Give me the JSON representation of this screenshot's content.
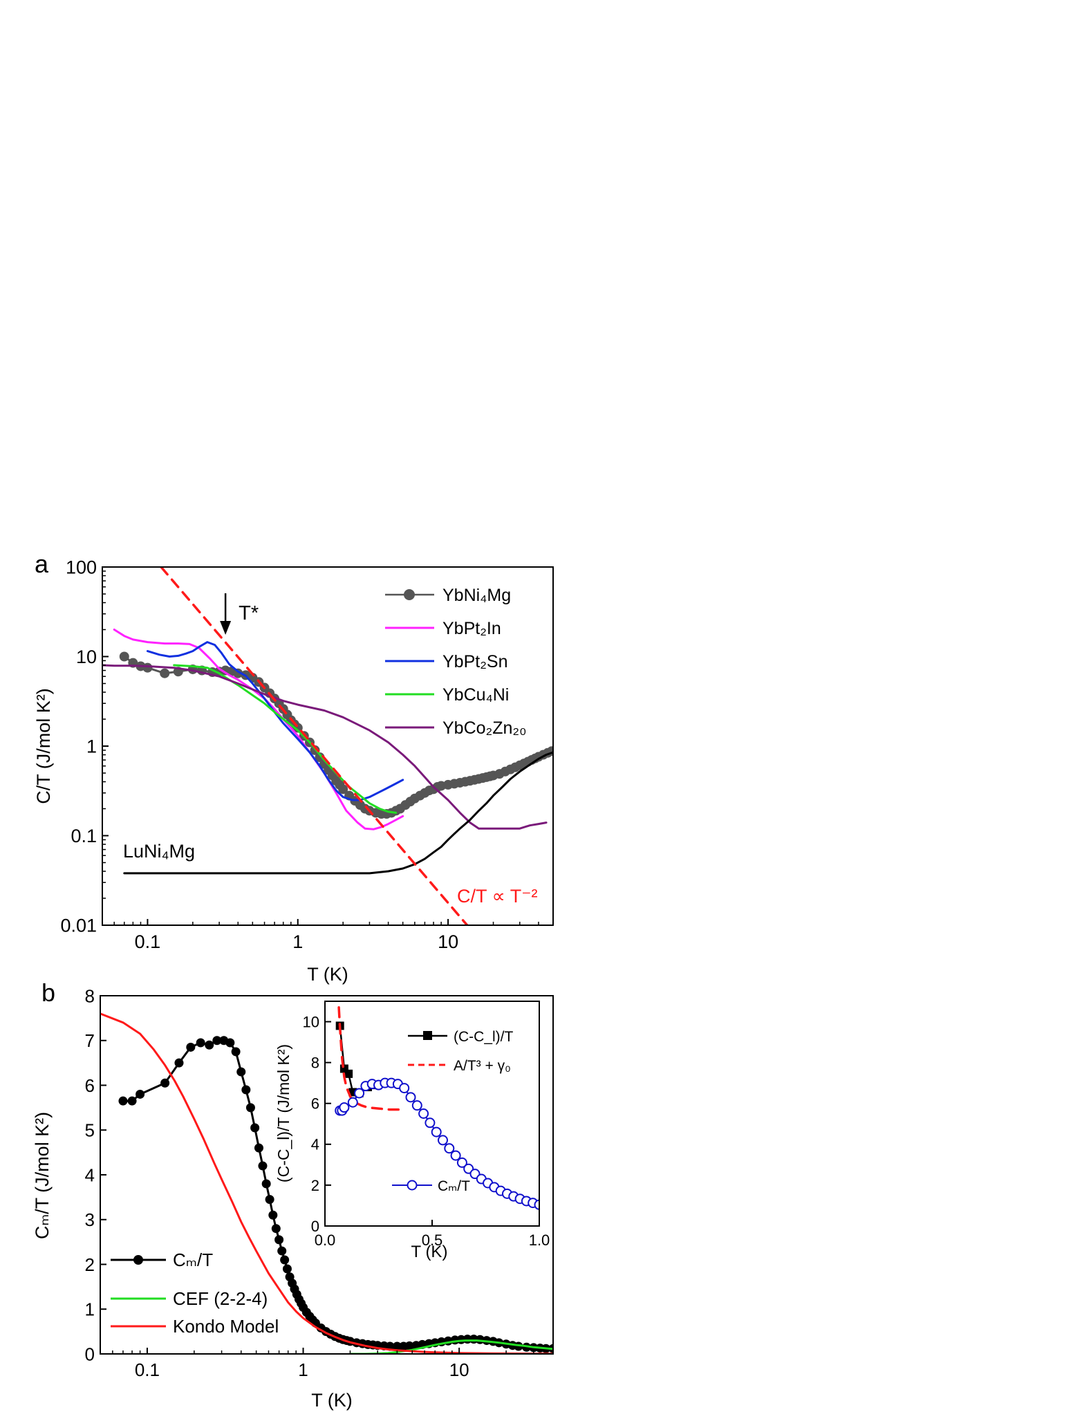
{
  "chart_data": [
    {
      "panel_label": "a",
      "type": "line",
      "xlabel": "T (K)",
      "ylabel": "C/T (J/mol K²)",
      "xscale": "log",
      "yscale": "log",
      "xlim": [
        0.05,
        50
      ],
      "ylim": [
        0.01,
        100
      ],
      "x_ticks": [
        0.1,
        1,
        10
      ],
      "x_tick_labels": [
        "0.1",
        "1",
        "10"
      ],
      "y_ticks": [
        0.01,
        0.1,
        1,
        10,
        100
      ],
      "y_tick_labels": [
        "0.01",
        "0.1",
        "1",
        "10",
        "100"
      ],
      "legend_position": "top-right",
      "annotations": {
        "tstar": "T*",
        "tstar_x": 0.33,
        "lu_label": "LuNi₄Mg",
        "powerlaw_label": "C/T ∝ T⁻²"
      },
      "colors": {
        "YbNi4Mg": "#555555",
        "YbPt2In": "#ff22ff",
        "YbPt2Sn": "#1030e0",
        "YbCu4Ni": "#22dd22",
        "YbCo2Zn20": "#7a1a7a",
        "LuNi4Mg": "#000000",
        "powerlaw": "#ff1a1a"
      },
      "series": [
        {
          "name": "YbNi₄Mg",
          "key": "YbNi4Mg",
          "style": "line-markers",
          "x": [
            0.07,
            0.08,
            0.09,
            0.1,
            0.13,
            0.16,
            0.2,
            0.23,
            0.27,
            0.3,
            0.33,
            0.36,
            0.4,
            0.45,
            0.5,
            0.55,
            0.6,
            0.65,
            0.7,
            0.75,
            0.8,
            0.85,
            0.9,
            0.95,
            1.0,
            1.1,
            1.2,
            1.3,
            1.4,
            1.5,
            1.6,
            1.7,
            1.8,
            1.9,
            2.0,
            2.2,
            2.4,
            2.6,
            2.8,
            3.0,
            3.3,
            3.6,
            3.9,
            4.2,
            4.5,
            4.8,
            5.2,
            5.6,
            6.0,
            6.5,
            7.0,
            7.5,
            8.0,
            8.5,
            9.0,
            10,
            11,
            12,
            13,
            14,
            15,
            16,
            17,
            18,
            19,
            20,
            22,
            24,
            26,
            28,
            30,
            32,
            34,
            36,
            38,
            40,
            43,
            46,
            49
          ],
          "y": [
            10,
            8.5,
            7.8,
            7.5,
            6.5,
            6.8,
            7.2,
            7.0,
            6.7,
            6.8,
            7.0,
            6.8,
            6.5,
            6.2,
            5.8,
            5.2,
            4.5,
            3.9,
            3.4,
            3.0,
            2.6,
            2.25,
            1.95,
            1.75,
            1.6,
            1.3,
            1.1,
            0.9,
            0.75,
            0.63,
            0.54,
            0.47,
            0.41,
            0.37,
            0.33,
            0.28,
            0.245,
            0.22,
            0.2,
            0.19,
            0.18,
            0.175,
            0.175,
            0.18,
            0.19,
            0.2,
            0.22,
            0.24,
            0.26,
            0.28,
            0.3,
            0.32,
            0.33,
            0.35,
            0.36,
            0.37,
            0.38,
            0.39,
            0.4,
            0.41,
            0.42,
            0.43,
            0.44,
            0.45,
            0.46,
            0.47,
            0.49,
            0.52,
            0.55,
            0.58,
            0.61,
            0.64,
            0.67,
            0.7,
            0.73,
            0.76,
            0.8,
            0.84,
            0.88
          ]
        },
        {
          "name": "YbPt₂In",
          "key": "YbPt2In",
          "style": "line",
          "x": [
            0.06,
            0.07,
            0.08,
            0.1,
            0.13,
            0.16,
            0.19,
            0.22,
            0.26,
            0.3,
            0.35,
            0.4,
            0.5,
            0.6,
            0.7,
            0.8,
            1.0,
            1.2,
            1.5,
            1.8,
            2.1,
            2.5,
            2.8,
            3.2,
            3.6,
            4.0,
            4.5,
            5.0
          ],
          "y": [
            20,
            17,
            15.5,
            14.5,
            14,
            14,
            13.8,
            12.5,
            9.5,
            7.3,
            6.2,
            5.5,
            4.3,
            3.4,
            2.6,
            2.0,
            1.3,
            0.85,
            0.5,
            0.3,
            0.19,
            0.14,
            0.12,
            0.118,
            0.125,
            0.135,
            0.15,
            0.165
          ]
        },
        {
          "name": "YbPt₂Sn",
          "key": "YbPt2Sn",
          "style": "line",
          "x": [
            0.1,
            0.12,
            0.14,
            0.16,
            0.18,
            0.2,
            0.22,
            0.25,
            0.28,
            0.31,
            0.35,
            0.4,
            0.45,
            0.5,
            0.6,
            0.7,
            0.8,
            1.0,
            1.2,
            1.4,
            1.6,
            1.8,
            2.0,
            2.3,
            2.6,
            3.0,
            3.4,
            3.8,
            4.2,
            4.6,
            5.0
          ],
          "y": [
            11.5,
            10.5,
            10.0,
            10.2,
            10.8,
            11.5,
            12.8,
            14.5,
            13.5,
            11,
            8.2,
            6.8,
            6.1,
            5.0,
            3.4,
            2.4,
            1.8,
            1.2,
            0.85,
            0.6,
            0.42,
            0.32,
            0.27,
            0.25,
            0.25,
            0.27,
            0.3,
            0.33,
            0.36,
            0.39,
            0.42
          ]
        },
        {
          "name": "YbCu₄Ni",
          "key": "YbCu4Ni",
          "style": "line",
          "x": [
            0.15,
            0.2,
            0.25,
            0.3,
            0.35,
            0.4,
            0.5,
            0.6,
            0.7,
            0.8,
            1.0,
            1.2,
            1.5,
            1.8,
            2.2,
            2.6,
            3.0,
            3.5,
            4.0,
            4.5
          ],
          "y": [
            8.0,
            7.8,
            7.5,
            6.5,
            5.5,
            4.8,
            3.7,
            3.0,
            2.4,
            2.0,
            1.5,
            1.1,
            0.7,
            0.5,
            0.35,
            0.28,
            0.23,
            0.2,
            0.185,
            0.18
          ]
        },
        {
          "name": "YbCo₂Zn₂₀",
          "key": "YbCo2Zn20",
          "style": "line",
          "x": [
            0.05,
            0.06,
            0.08,
            0.1,
            0.15,
            0.2,
            0.3,
            0.4,
            0.5,
            0.6,
            0.8,
            1.0,
            1.5,
            2.0,
            3.0,
            4.0,
            5.0,
            6.0,
            7.0,
            8.0,
            10,
            12,
            14,
            16,
            20,
            25,
            30,
            35,
            40,
            45
          ],
          "y": [
            8.0,
            7.9,
            7.9,
            7.8,
            7.5,
            7.0,
            6.0,
            5.0,
            4.3,
            3.8,
            3.2,
            2.9,
            2.5,
            2.1,
            1.5,
            1.1,
            0.8,
            0.6,
            0.45,
            0.35,
            0.25,
            0.18,
            0.14,
            0.12,
            0.12,
            0.12,
            0.12,
            0.13,
            0.135,
            0.14
          ]
        },
        {
          "name": "LuNi₄Mg",
          "key": "LuNi4Mg",
          "style": "line",
          "in_legend": false,
          "x": [
            0.07,
            0.1,
            0.2,
            0.5,
            1.0,
            2.0,
            3.0,
            4.0,
            5.0,
            6.0,
            7.0,
            8.0,
            9.0,
            10,
            11,
            12,
            14,
            16,
            18,
            20,
            23,
            26,
            30,
            35,
            40,
            45,
            50
          ],
          "y": [
            0.038,
            0.038,
            0.038,
            0.038,
            0.038,
            0.038,
            0.038,
            0.04,
            0.043,
            0.048,
            0.055,
            0.065,
            0.075,
            0.09,
            0.105,
            0.12,
            0.15,
            0.19,
            0.23,
            0.28,
            0.35,
            0.43,
            0.52,
            0.62,
            0.72,
            0.8,
            0.85
          ]
        },
        {
          "name": "C/T ∝ T⁻²",
          "key": "powerlaw",
          "style": "dashed",
          "in_legend": false,
          "x": [
            0.123,
            13.4
          ],
          "y": [
            100,
            0.01
          ]
        }
      ]
    },
    {
      "panel_label": "b",
      "type": "line",
      "xlabel": "T (K)",
      "ylabel": "Cₘ/T (J/mol K²)",
      "xscale": "log",
      "yscale": "linear",
      "xlim": [
        0.05,
        40
      ],
      "ylim": [
        0,
        8
      ],
      "x_ticks": [
        0.1,
        1,
        10
      ],
      "x_tick_labels": [
        "0.1",
        "1",
        "10"
      ],
      "y_ticks": [
        0,
        1,
        2,
        3,
        4,
        5,
        6,
        7,
        8
      ],
      "y_tick_labels": [
        "0",
        "1",
        "2",
        "3",
        "4",
        "5",
        "6",
        "7",
        "8"
      ],
      "legend_position": "bottom-left",
      "colors": {
        "cm": "#000000",
        "cef": "#22dd22",
        "kondo": "#ff1a1a"
      },
      "series": [
        {
          "name": "Cₘ/T",
          "key": "cm",
          "style": "line-markers",
          "x": [
            0.07,
            0.08,
            0.09,
            0.13,
            0.16,
            0.19,
            0.22,
            0.25,
            0.28,
            0.31,
            0.34,
            0.37,
            0.4,
            0.43,
            0.46,
            0.49,
            0.52,
            0.55,
            0.58,
            0.61,
            0.64,
            0.67,
            0.7,
            0.73,
            0.76,
            0.79,
            0.82,
            0.85,
            0.88,
            0.91,
            0.94,
            0.97,
            1.0,
            1.05,
            1.1,
            1.15,
            1.2,
            1.3,
            1.4,
            1.5,
            1.6,
            1.7,
            1.8,
            1.9,
            2.0,
            2.2,
            2.4,
            2.6,
            2.8,
            3.0,
            3.3,
            3.6,
            4.0,
            4.4,
            4.8,
            5.3,
            5.8,
            6.4,
            7.0,
            7.7,
            8.5,
            9.4,
            10.3,
            11.3,
            12.4,
            13.6,
            15,
            16.5,
            18,
            20,
            22,
            24,
            27,
            30,
            33,
            36,
            40
          ],
          "y": [
            5.65,
            5.65,
            5.8,
            6.05,
            6.5,
            6.85,
            6.95,
            6.9,
            7.0,
            7.0,
            6.95,
            6.75,
            6.3,
            5.9,
            5.5,
            5.05,
            4.6,
            4.2,
            3.8,
            3.45,
            3.1,
            2.8,
            2.55,
            2.3,
            2.1,
            1.9,
            1.72,
            1.58,
            1.45,
            1.33,
            1.22,
            1.13,
            1.04,
            0.93,
            0.84,
            0.76,
            0.69,
            0.58,
            0.5,
            0.44,
            0.39,
            0.35,
            0.32,
            0.3,
            0.28,
            0.25,
            0.23,
            0.21,
            0.2,
            0.19,
            0.18,
            0.17,
            0.17,
            0.17,
            0.18,
            0.19,
            0.21,
            0.23,
            0.25,
            0.27,
            0.29,
            0.31,
            0.32,
            0.33,
            0.33,
            0.32,
            0.3,
            0.28,
            0.25,
            0.22,
            0.19,
            0.17,
            0.15,
            0.14,
            0.13,
            0.12,
            0.12
          ]
        },
        {
          "name": "CEF (2-2-4)",
          "key": "cef",
          "style": "line",
          "x": [
            2.0,
            2.5,
            3.0,
            3.5,
            4.0,
            5.0,
            6.0,
            7.0,
            8.0,
            9.0,
            10,
            11,
            12,
            13,
            14,
            16,
            18,
            20,
            23,
            26,
            30,
            35,
            40
          ],
          "y": [
            0.0,
            0.0,
            0.01,
            0.02,
            0.04,
            0.09,
            0.15,
            0.2,
            0.24,
            0.27,
            0.29,
            0.3,
            0.3,
            0.3,
            0.29,
            0.27,
            0.25,
            0.23,
            0.2,
            0.18,
            0.15,
            0.13,
            0.11
          ]
        },
        {
          "name": "Kondo Model",
          "key": "kondo",
          "style": "line",
          "x": [
            0.05,
            0.07,
            0.09,
            0.11,
            0.13,
            0.15,
            0.17,
            0.2,
            0.23,
            0.27,
            0.3,
            0.35,
            0.4,
            0.45,
            0.5,
            0.6,
            0.7,
            0.8,
            0.9,
            1.0,
            1.2,
            1.4,
            1.6,
            1.8,
            2.0,
            2.5,
            3.0,
            3.5,
            4.0,
            5.0,
            6.0,
            7.0,
            8.0,
            10,
            13,
            16,
            20,
            25,
            30,
            40
          ],
          "y": [
            7.6,
            7.4,
            7.15,
            6.8,
            6.45,
            6.1,
            5.75,
            5.25,
            4.8,
            4.25,
            3.9,
            3.4,
            2.95,
            2.6,
            2.3,
            1.8,
            1.45,
            1.15,
            0.95,
            0.8,
            0.6,
            0.47,
            0.38,
            0.31,
            0.26,
            0.18,
            0.13,
            0.1,
            0.08,
            0.06,
            0.045,
            0.035,
            0.03,
            0.02,
            0.015,
            0.012,
            0.01,
            0.008,
            0.006,
            0.005
          ]
        }
      ]
    },
    {
      "panel_label": "",
      "type": "line",
      "inset_of": "b",
      "xlabel": "T (K)",
      "ylabel": "(C-C_l)/T (J/mol K²)",
      "xscale": "linear",
      "yscale": "linear",
      "xlim": [
        0,
        1.0
      ],
      "ylim": [
        0,
        11
      ],
      "x_ticks": [
        0,
        0.5,
        1.0
      ],
      "x_tick_labels": [
        "0.0",
        "0.5",
        "1.0"
      ],
      "y_ticks": [
        0,
        2,
        4,
        6,
        8,
        10
      ],
      "y_tick_labels": [
        "0",
        "2",
        "4",
        "6",
        "8",
        "10"
      ],
      "legend_position": "top-right",
      "colors": {
        "ccl": "#000000",
        "fit": "#ff1a1a",
        "cm": "#1010cc"
      },
      "series": [
        {
          "name": "(C-C_l)/T",
          "key": "ccl",
          "style": "line-squares",
          "x": [
            0.07,
            0.09,
            0.11,
            0.13,
            0.16,
            0.2,
            0.24
          ],
          "y": [
            9.8,
            7.7,
            7.45,
            6.55,
            6.5,
            6.8,
            6.9
          ]
        },
        {
          "name": "A/T³ + γ₀",
          "key": "fit",
          "style": "dashed",
          "x": [
            0.065,
            0.07,
            0.075,
            0.08,
            0.09,
            0.1,
            0.12,
            0.14,
            0.17,
            0.2,
            0.25,
            0.3,
            0.35
          ],
          "y": [
            10.7,
            9.7,
            8.9,
            8.2,
            7.3,
            6.8,
            6.3,
            6.05,
            5.9,
            5.8,
            5.75,
            5.7,
            5.7
          ]
        },
        {
          "name": "Cₘ/T",
          "key": "cm",
          "style": "line-open-circles",
          "x": [
            0.07,
            0.08,
            0.09,
            0.13,
            0.16,
            0.19,
            0.22,
            0.25,
            0.28,
            0.31,
            0.34,
            0.37,
            0.4,
            0.43,
            0.46,
            0.49,
            0.52,
            0.55,
            0.58,
            0.61,
            0.64,
            0.67,
            0.7,
            0.73,
            0.76,
            0.79,
            0.82,
            0.85,
            0.88,
            0.91,
            0.94,
            0.97,
            1.0
          ],
          "y": [
            5.65,
            5.65,
            5.8,
            6.05,
            6.5,
            6.85,
            6.95,
            6.9,
            7.0,
            7.0,
            6.95,
            6.75,
            6.3,
            5.9,
            5.5,
            5.05,
            4.6,
            4.2,
            3.8,
            3.45,
            3.1,
            2.8,
            2.55,
            2.3,
            2.1,
            1.9,
            1.72,
            1.58,
            1.45,
            1.33,
            1.22,
            1.13,
            1.04
          ]
        }
      ]
    }
  ]
}
